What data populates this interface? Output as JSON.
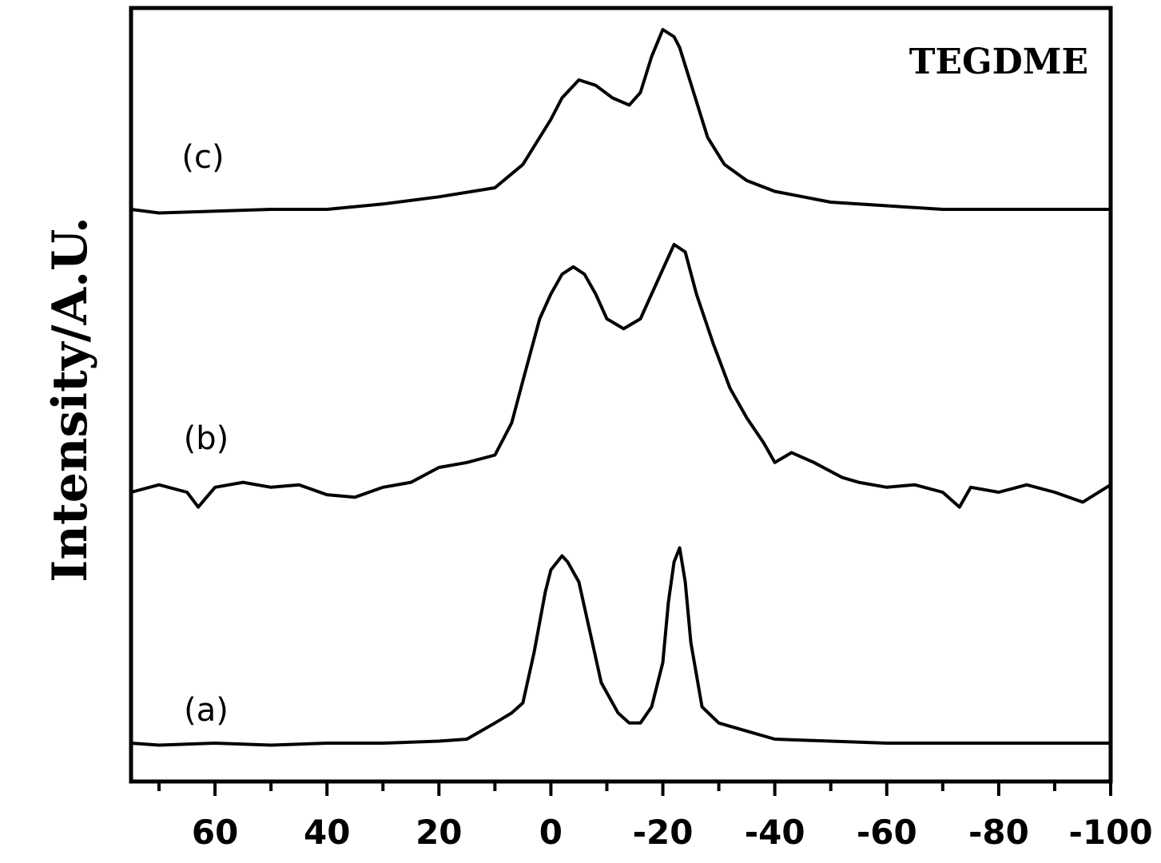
{
  "chart_data": {
    "type": "line",
    "title": "",
    "annotation": "TEGDME",
    "xlabel": "",
    "ylabel": "Intensity/A.U.",
    "xlim": [
      75,
      -100
    ],
    "x_reversed": true,
    "x_ticks_major": [
      60,
      40,
      20,
      0,
      -20,
      -40,
      -60,
      -80,
      -100
    ],
    "x_tick_labels": [
      "60",
      "40",
      "20",
      "0",
      "-20",
      "-40",
      "-60",
      "-80",
      "-100"
    ],
    "x_ticks_minor": [
      70,
      50,
      30,
      10,
      -10,
      -30,
      -50,
      -70,
      -90
    ],
    "y_ticks": "none",
    "grid": false,
    "legend": "none",
    "series": [
      {
        "label": "(a)",
        "x": [
          75,
          70,
          60,
          50,
          40,
          30,
          20,
          15,
          10,
          7,
          5,
          3,
          1,
          0,
          -2,
          -3,
          -5,
          -7,
          -9,
          -12,
          -14,
          -16,
          -18,
          -20,
          -21,
          -22,
          -23,
          -24,
          -25,
          -27,
          -30,
          -35,
          -40,
          -50,
          -60,
          -70,
          -80,
          -90,
          -100
        ],
        "y": [
          0.0,
          -0.01,
          0.0,
          -0.01,
          0.0,
          0.0,
          0.01,
          0.02,
          0.1,
          0.15,
          0.2,
          0.45,
          0.75,
          0.86,
          0.93,
          0.9,
          0.8,
          0.55,
          0.3,
          0.15,
          0.1,
          0.1,
          0.18,
          0.4,
          0.7,
          0.9,
          0.97,
          0.8,
          0.5,
          0.18,
          0.1,
          0.06,
          0.02,
          0.01,
          0.0,
          0.0,
          0.0,
          0.0,
          0.0
        ]
      },
      {
        "label": "(b)",
        "x": [
          75,
          70,
          65,
          63,
          60,
          55,
          50,
          45,
          40,
          35,
          30,
          25,
          20,
          15,
          10,
          7,
          5,
          2,
          0,
          -2,
          -4,
          -6,
          -8,
          -10,
          -13,
          -16,
          -18,
          -20,
          -22,
          -24,
          -26,
          -29,
          -32,
          -35,
          -38,
          -40,
          -43,
          -47,
          -52,
          -55,
          -60,
          -65,
          -70,
          -73,
          -75,
          -80,
          -85,
          -90,
          -95,
          -100
        ],
        "y": [
          0.0,
          0.03,
          0.0,
          -0.06,
          0.02,
          0.04,
          0.02,
          0.03,
          -0.01,
          -0.02,
          0.02,
          0.04,
          0.1,
          0.12,
          0.15,
          0.28,
          0.45,
          0.7,
          0.8,
          0.88,
          0.91,
          0.88,
          0.8,
          0.7,
          0.66,
          0.7,
          0.8,
          0.9,
          1.0,
          0.97,
          0.8,
          0.6,
          0.42,
          0.3,
          0.2,
          0.12,
          0.16,
          0.12,
          0.06,
          0.04,
          0.02,
          0.03,
          0.0,
          -0.06,
          0.02,
          0.0,
          0.03,
          0.0,
          -0.04,
          0.03
        ]
      },
      {
        "label": "(c)",
        "x": [
          75,
          70,
          60,
          50,
          40,
          30,
          20,
          10,
          5,
          0,
          -2,
          -5,
          -8,
          -11,
          -14,
          -16,
          -18,
          -20,
          -22,
          -23,
          -25,
          -28,
          -31,
          -35,
          -40,
          -50,
          -60,
          -70,
          -80,
          -90,
          -100
        ],
        "y": [
          0.0,
          -0.02,
          -0.01,
          0.0,
          0.0,
          0.03,
          0.07,
          0.12,
          0.25,
          0.5,
          0.62,
          0.72,
          0.69,
          0.62,
          0.58,
          0.65,
          0.85,
          1.0,
          0.96,
          0.9,
          0.7,
          0.4,
          0.25,
          0.16,
          0.1,
          0.04,
          0.02,
          0.0,
          0.0,
          0.0,
          0.0
        ]
      }
    ]
  }
}
